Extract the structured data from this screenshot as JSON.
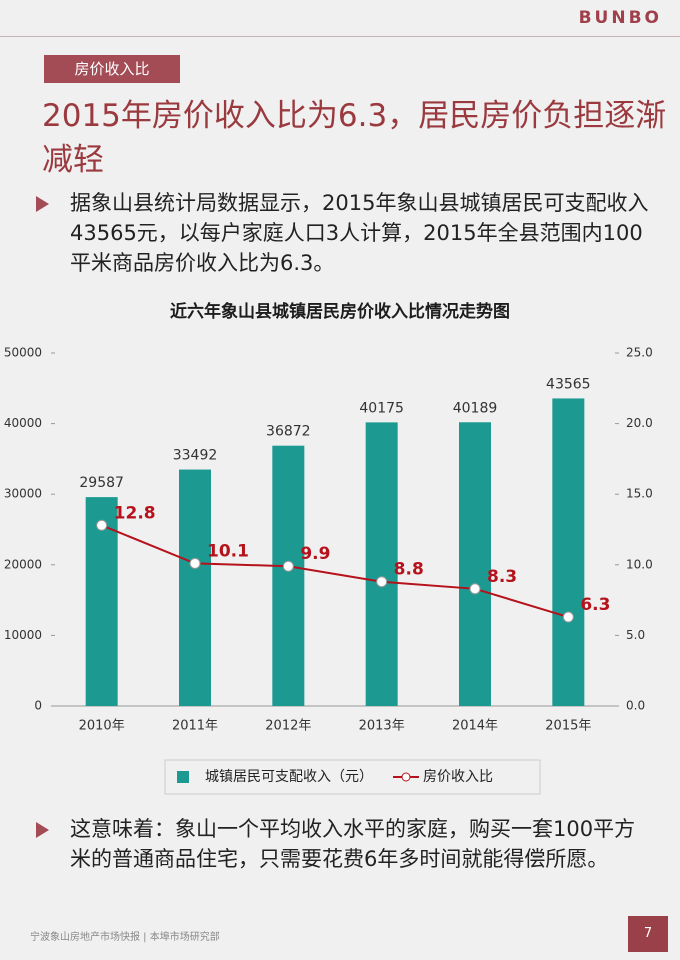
{
  "header": {
    "logo": "BUNBO",
    "tag": "房价收入比",
    "title": "2015年房价收入比为6.3，居民房价负担逐渐减轻"
  },
  "bullets": [
    "据象山县统计局数据显示，2015年象山县城镇居民可支配收入43565元，以每户家庭人口3人计算，2015年全县范围内100平米商品房价收入比为6.3。",
    "这意味着：象山一个平均收入水平的家庭，购买一套100平方米的普通商品住宅，只需要花费6年多时间就能得偿所愿。"
  ],
  "chart_data": {
    "type": "bar",
    "title": "近六年象山县城镇居民房价收入比情况走势图",
    "categories": [
      "2010年",
      "2011年",
      "2012年",
      "2013年",
      "2014年",
      "2015年"
    ],
    "series": [
      {
        "name": "城镇居民可支配收入（元）",
        "color": "#1c9a92",
        "values": [
          29587,
          33492,
          36872,
          40175,
          40189,
          43565
        ]
      },
      {
        "name": "房价收入比",
        "color": "#b5121b",
        "type": "line",
        "axis": "y2",
        "values": [
          12.8,
          10.1,
          9.9,
          8.8,
          8.3,
          6.3
        ]
      }
    ],
    "ylim": [
      0,
      50000
    ],
    "yticks": [
      0,
      10000,
      20000,
      30000,
      40000,
      50000
    ],
    "y2lim": [
      0,
      25
    ],
    "y2ticks": [
      {
        "value": 0,
        "label": "0.0"
      },
      {
        "value": 5,
        "label": "5.0"
      },
      {
        "value": 10,
        "label": "10.0"
      },
      {
        "value": 15,
        "label": "15.0"
      },
      {
        "value": 20,
        "label": "20.0"
      },
      {
        "value": 25,
        "label": "25.0"
      }
    ],
    "legend": "bottom"
  },
  "footer": {
    "text": "宁波象山房地产市场快报 | 本埠市场研究部",
    "page": "7"
  }
}
